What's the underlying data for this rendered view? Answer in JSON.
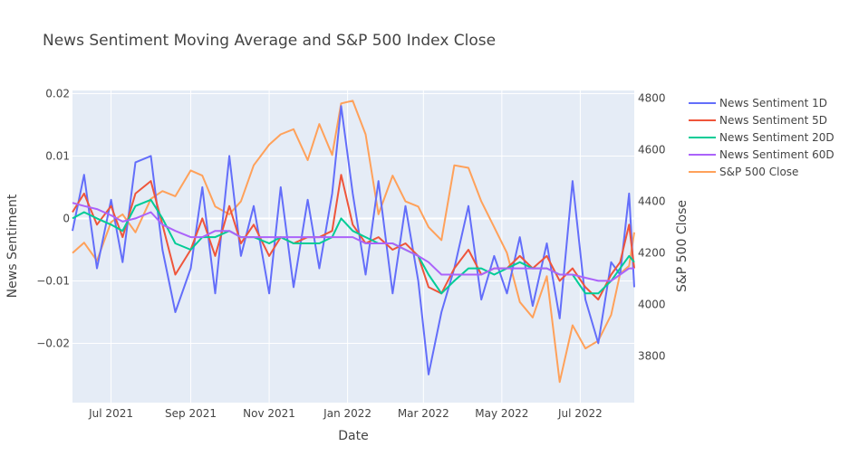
{
  "chart_data": {
    "type": "line",
    "title": "News Sentiment Moving Average and S&P 500 Index Close",
    "xlabel": "Date",
    "ylabel": "News Sentiment",
    "y2label": "S&P 500 Close",
    "x_range": [
      "2021-06-01",
      "2022-08-12"
    ],
    "ylim": [
      -0.0295,
      0.0205
    ],
    "y2lim": [
      3620,
      4830
    ],
    "x_ticks": [
      {
        "date": "2021-07-01",
        "label": "Jul 2021"
      },
      {
        "date": "2021-09-01",
        "label": "Sep 2021"
      },
      {
        "date": "2021-11-01",
        "label": "Nov 2021"
      },
      {
        "date": "2022-01-01",
        "label": "Jan 2022"
      },
      {
        "date": "2022-03-01",
        "label": "Mar 2022"
      },
      {
        "date": "2022-05-01",
        "label": "May 2022"
      },
      {
        "date": "2022-07-01",
        "label": "Jul 2022"
      }
    ],
    "y_ticks": [
      {
        "value": 0.02,
        "label": "0.02"
      },
      {
        "value": 0.01,
        "label": "0.01"
      },
      {
        "value": 0,
        "label": "0"
      },
      {
        "value": -0.01,
        "label": "−0.01"
      },
      {
        "value": -0.02,
        "label": "−0.02"
      }
    ],
    "y2_ticks": [
      {
        "value": 4800,
        "label": "4800"
      },
      {
        "value": 4600,
        "label": "4600"
      },
      {
        "value": 4400,
        "label": "4400"
      },
      {
        "value": 4200,
        "label": "4200"
      },
      {
        "value": 4000,
        "label": "4000"
      },
      {
        "value": 3800,
        "label": "3800"
      }
    ],
    "grid": true,
    "legend_position": "right",
    "series": [
      {
        "name": "News Sentiment 1D",
        "color": "#636efa",
        "axis": "y",
        "x": [
          "2021-06-01",
          "2021-06-10",
          "2021-06-20",
          "2021-07-01",
          "2021-07-10",
          "2021-07-20",
          "2021-08-01",
          "2021-08-10",
          "2021-08-20",
          "2021-09-01",
          "2021-09-10",
          "2021-09-20",
          "2021-10-01",
          "2021-10-10",
          "2021-10-20",
          "2021-11-01",
          "2021-11-10",
          "2021-11-20",
          "2021-12-01",
          "2021-12-10",
          "2021-12-20",
          "2021-12-27",
          "2022-01-05",
          "2022-01-15",
          "2022-01-25",
          "2022-02-05",
          "2022-02-15",
          "2022-02-25",
          "2022-03-05",
          "2022-03-15",
          "2022-03-25",
          "2022-04-05",
          "2022-04-15",
          "2022-04-25",
          "2022-05-05",
          "2022-05-15",
          "2022-05-25",
          "2022-06-05",
          "2022-06-15",
          "2022-06-25",
          "2022-07-05",
          "2022-07-15",
          "2022-07-25",
          "2022-08-01",
          "2022-08-08",
          "2022-08-12"
        ],
        "values": [
          -0.002,
          0.007,
          -0.008,
          0.003,
          -0.007,
          0.009,
          0.01,
          -0.005,
          -0.015,
          -0.008,
          0.005,
          -0.012,
          0.01,
          -0.006,
          0.002,
          -0.012,
          0.005,
          -0.011,
          0.003,
          -0.008,
          0.004,
          0.018,
          0.004,
          -0.009,
          0.006,
          -0.012,
          0.002,
          -0.01,
          -0.025,
          -0.015,
          -0.008,
          0.002,
          -0.013,
          -0.006,
          -0.012,
          -0.003,
          -0.014,
          -0.004,
          -0.016,
          0.006,
          -0.013,
          -0.02,
          -0.007,
          -0.009,
          0.004,
          -0.011
        ]
      },
      {
        "name": "News Sentiment 5D",
        "color": "#ef553b",
        "axis": "y",
        "x": [
          "2021-06-01",
          "2021-06-10",
          "2021-06-20",
          "2021-07-01",
          "2021-07-10",
          "2021-07-20",
          "2021-08-01",
          "2021-08-10",
          "2021-08-20",
          "2021-09-01",
          "2021-09-10",
          "2021-09-20",
          "2021-10-01",
          "2021-10-10",
          "2021-10-20",
          "2021-11-01",
          "2021-11-10",
          "2021-11-20",
          "2021-12-01",
          "2021-12-10",
          "2021-12-20",
          "2021-12-27",
          "2022-01-05",
          "2022-01-15",
          "2022-01-25",
          "2022-02-05",
          "2022-02-15",
          "2022-02-25",
          "2022-03-05",
          "2022-03-15",
          "2022-03-25",
          "2022-04-05",
          "2022-04-15",
          "2022-04-25",
          "2022-05-05",
          "2022-05-15",
          "2022-05-25",
          "2022-06-05",
          "2022-06-15",
          "2022-06-25",
          "2022-07-05",
          "2022-07-15",
          "2022-07-25",
          "2022-08-01",
          "2022-08-08",
          "2022-08-12"
        ],
        "values": [
          0.001,
          0.004,
          -0.001,
          0.002,
          -0.003,
          0.004,
          0.006,
          -0.001,
          -0.009,
          -0.005,
          0.0,
          -0.006,
          0.002,
          -0.004,
          -0.001,
          -0.006,
          -0.003,
          -0.004,
          -0.003,
          -0.003,
          -0.002,
          0.007,
          -0.001,
          -0.004,
          -0.003,
          -0.005,
          -0.004,
          -0.006,
          -0.011,
          -0.012,
          -0.008,
          -0.005,
          -0.009,
          -0.008,
          -0.008,
          -0.006,
          -0.008,
          -0.006,
          -0.01,
          -0.008,
          -0.011,
          -0.013,
          -0.009,
          -0.007,
          -0.001,
          -0.008
        ]
      },
      {
        "name": "News Sentiment 20D",
        "color": "#00cc96",
        "axis": "y",
        "x": [
          "2021-06-01",
          "2021-06-10",
          "2021-06-20",
          "2021-07-01",
          "2021-07-10",
          "2021-07-20",
          "2021-08-01",
          "2021-08-10",
          "2021-08-20",
          "2021-09-01",
          "2021-09-10",
          "2021-09-20",
          "2021-10-01",
          "2021-10-10",
          "2021-10-20",
          "2021-11-01",
          "2021-11-10",
          "2021-11-20",
          "2021-12-01",
          "2021-12-10",
          "2021-12-20",
          "2021-12-27",
          "2022-01-05",
          "2022-01-15",
          "2022-01-25",
          "2022-02-05",
          "2022-02-15",
          "2022-02-25",
          "2022-03-05",
          "2022-03-15",
          "2022-03-25",
          "2022-04-05",
          "2022-04-15",
          "2022-04-25",
          "2022-05-05",
          "2022-05-15",
          "2022-05-25",
          "2022-06-05",
          "2022-06-15",
          "2022-06-25",
          "2022-07-05",
          "2022-07-15",
          "2022-07-25",
          "2022-08-01",
          "2022-08-08",
          "2022-08-12"
        ],
        "values": [
          0.0,
          0.001,
          0.0,
          -0.001,
          -0.002,
          0.002,
          0.003,
          0.0,
          -0.004,
          -0.005,
          -0.003,
          -0.003,
          -0.002,
          -0.003,
          -0.003,
          -0.004,
          -0.003,
          -0.004,
          -0.004,
          -0.004,
          -0.003,
          0.0,
          -0.002,
          -0.003,
          -0.004,
          -0.004,
          -0.005,
          -0.006,
          -0.009,
          -0.012,
          -0.01,
          -0.008,
          -0.008,
          -0.009,
          -0.008,
          -0.007,
          -0.008,
          -0.008,
          -0.009,
          -0.009,
          -0.012,
          -0.012,
          -0.01,
          -0.008,
          -0.006,
          -0.007
        ]
      },
      {
        "name": "News Sentiment 60D",
        "color": "#ab63fa",
        "axis": "y",
        "x": [
          "2021-06-01",
          "2021-06-10",
          "2021-06-20",
          "2021-07-01",
          "2021-07-10",
          "2021-07-20",
          "2021-08-01",
          "2021-08-10",
          "2021-08-20",
          "2021-09-01",
          "2021-09-10",
          "2021-09-20",
          "2021-10-01",
          "2021-10-10",
          "2021-10-20",
          "2021-11-01",
          "2021-11-10",
          "2021-11-20",
          "2021-12-01",
          "2021-12-10",
          "2021-12-20",
          "2021-12-27",
          "2022-01-05",
          "2022-01-15",
          "2022-01-25",
          "2022-02-05",
          "2022-02-15",
          "2022-02-25",
          "2022-03-05",
          "2022-03-15",
          "2022-03-25",
          "2022-04-05",
          "2022-04-15",
          "2022-04-25",
          "2022-05-05",
          "2022-05-15",
          "2022-05-25",
          "2022-06-05",
          "2022-06-15",
          "2022-06-25",
          "2022-07-05",
          "2022-07-15",
          "2022-07-25",
          "2022-08-01",
          "2022-08-08",
          "2022-08-12"
        ],
        "values": [
          0.0025,
          0.002,
          0.0015,
          0.0005,
          -0.0005,
          0.0,
          0.001,
          -0.001,
          -0.002,
          -0.003,
          -0.003,
          -0.002,
          -0.002,
          -0.003,
          -0.003,
          -0.003,
          -0.003,
          -0.003,
          -0.003,
          -0.003,
          -0.003,
          -0.003,
          -0.003,
          -0.004,
          -0.004,
          -0.004,
          -0.005,
          -0.006,
          -0.007,
          -0.009,
          -0.009,
          -0.009,
          -0.009,
          -0.008,
          -0.008,
          -0.008,
          -0.008,
          -0.008,
          -0.009,
          -0.009,
          -0.0095,
          -0.01,
          -0.01,
          -0.009,
          -0.008,
          -0.008
        ]
      },
      {
        "name": "S&P 500 Close",
        "color": "#ffa15a",
        "axis": "y2",
        "x": [
          "2021-06-01",
          "2021-06-10",
          "2021-06-20",
          "2021-07-01",
          "2021-07-10",
          "2021-07-20",
          "2021-08-01",
          "2021-08-10",
          "2021-08-20",
          "2021-09-01",
          "2021-09-10",
          "2021-09-20",
          "2021-10-01",
          "2021-10-10",
          "2021-10-20",
          "2021-11-01",
          "2021-11-10",
          "2021-11-20",
          "2021-12-01",
          "2021-12-10",
          "2021-12-20",
          "2021-12-27",
          "2022-01-05",
          "2022-01-15",
          "2022-01-25",
          "2022-02-05",
          "2022-02-15",
          "2022-02-25",
          "2022-03-05",
          "2022-03-15",
          "2022-03-25",
          "2022-04-05",
          "2022-04-15",
          "2022-04-25",
          "2022-05-05",
          "2022-05-15",
          "2022-05-25",
          "2022-06-05",
          "2022-06-15",
          "2022-06-25",
          "2022-07-05",
          "2022-07-15",
          "2022-07-25",
          "2022-08-01",
          "2022-08-08",
          "2022-08-12"
        ],
        "values": [
          4200,
          4240,
          4170,
          4320,
          4350,
          4280,
          4410,
          4440,
          4420,
          4520,
          4500,
          4380,
          4350,
          4400,
          4540,
          4620,
          4660,
          4680,
          4560,
          4700,
          4580,
          4780,
          4790,
          4660,
          4350,
          4500,
          4400,
          4380,
          4300,
          4250,
          4540,
          4530,
          4400,
          4300,
          4200,
          4010,
          3950,
          4110,
          3700,
          3920,
          3830,
          3860,
          3960,
          4120,
          4150,
          4280
        ]
      }
    ]
  }
}
